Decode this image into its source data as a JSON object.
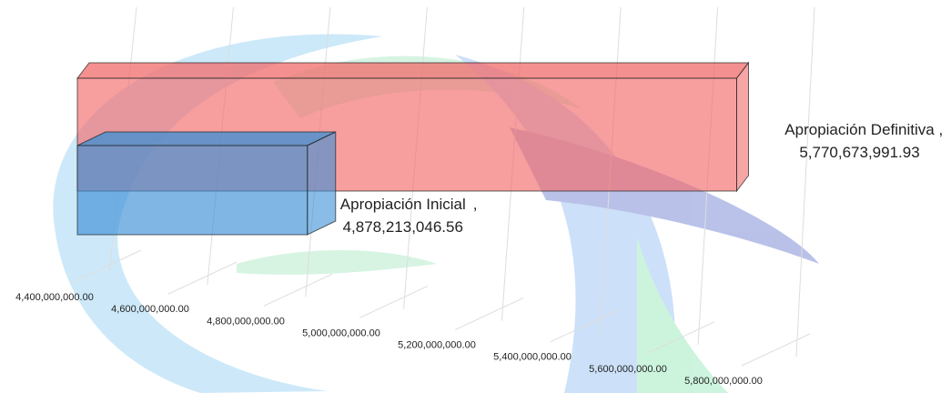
{
  "chart_data": {
    "type": "bar3d",
    "categories": [
      "Apropiación Inicial",
      "Apropiación Definitiva"
    ],
    "series": [
      {
        "name": "Apropiación",
        "values": [
          4878213046.56,
          5770673991.93
        ],
        "value_labels": [
          "4,878,213,046.56",
          "5,770,673,991.93"
        ]
      }
    ],
    "colors": [
      "#3a8fd6",
      "#f26b6b"
    ],
    "xlim": [
      4400000000,
      5800000000
    ],
    "xticks": [
      {
        "value": 4400000000,
        "label": "4,400,000,000.00"
      },
      {
        "value": 4600000000,
        "label": "4,600,000,000.00"
      },
      {
        "value": 4800000000,
        "label": "4,800,000,000.00"
      },
      {
        "value": 5000000000,
        "label": "5,000,000,000.00"
      },
      {
        "value": 5200000000,
        "label": "5,200,000,000.00"
      },
      {
        "value": 5400000000,
        "label": "5,400,000,000.00"
      },
      {
        "value": 5600000000,
        "label": "5,600,000,000.00"
      },
      {
        "value": 5800000000,
        "label": "5,800,000,000.00"
      }
    ],
    "grid": true
  }
}
